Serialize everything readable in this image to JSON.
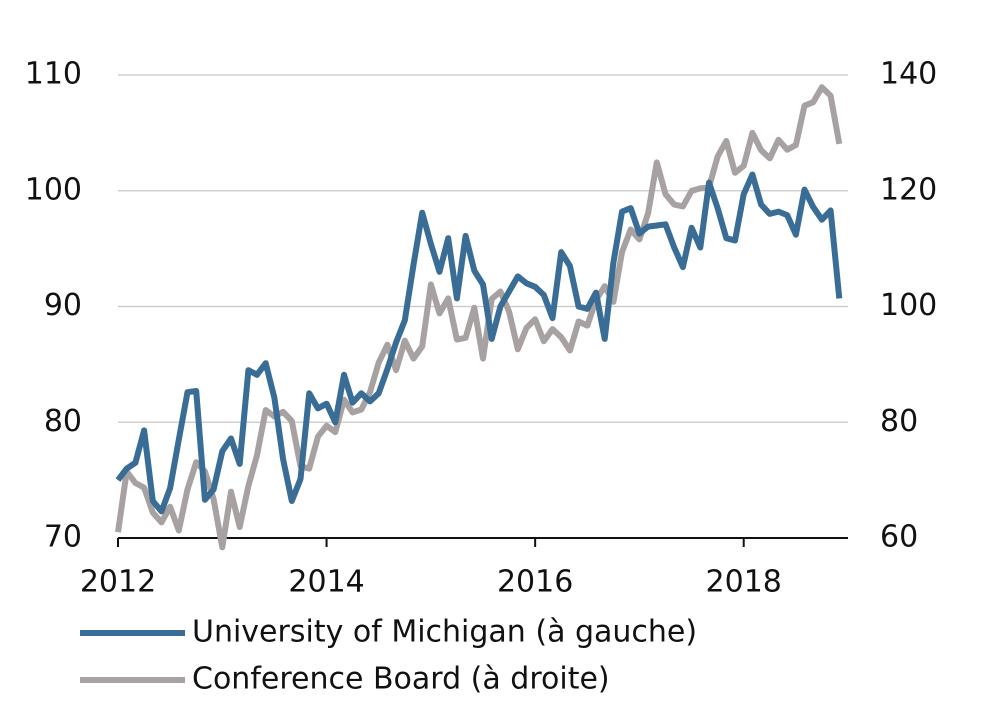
{
  "chart_data": {
    "type": "line",
    "x": [
      2012,
      2012.0833,
      2012.1667,
      2012.25,
      2012.3333,
      2012.4167,
      2012.5,
      2012.5833,
      2012.6667,
      2012.75,
      2012.8333,
      2012.9167,
      2013,
      2013.0833,
      2013.1667,
      2013.25,
      2013.3333,
      2013.4167,
      2013.5,
      2013.5833,
      2013.6667,
      2013.75,
      2013.8333,
      2013.9167,
      2014,
      2014.0833,
      2014.1667,
      2014.25,
      2014.3333,
      2014.4167,
      2014.5,
      2014.5833,
      2014.6667,
      2014.75,
      2014.8333,
      2014.9167,
      2015,
      2015.0833,
      2015.1667,
      2015.25,
      2015.3333,
      2015.4167,
      2015.5,
      2015.5833,
      2015.6667,
      2015.75,
      2015.8333,
      2015.9167,
      2016,
      2016.0833,
      2016.1667,
      2016.25,
      2016.3333,
      2016.4167,
      2016.5,
      2016.5833,
      2016.6667,
      2016.75,
      2016.8333,
      2016.9167,
      2017,
      2017.0833,
      2017.1667,
      2017.25,
      2017.3333,
      2017.4167,
      2017.5,
      2017.5833,
      2017.6667,
      2017.75,
      2017.8333,
      2017.9167,
      2018,
      2018.0833,
      2018.1667,
      2018.25,
      2018.3333,
      2018.4167,
      2018.5,
      2018.5833,
      2018.6667,
      2018.75,
      2018.8333,
      2018.9167
    ],
    "series": [
      {
        "name": "University of Michigan (à gauche)",
        "color": "#3a6d96",
        "values": [
          75,
          76,
          76.5,
          79.3,
          73.2,
          72.3,
          74.3,
          78.5,
          82.6,
          82.7,
          73.3,
          74.2,
          77.5,
          78.6,
          76.4,
          84.5,
          84.1,
          85.1,
          82.1,
          76.8,
          73.2,
          75.1,
          82.5,
          81.2,
          81.6,
          80.0,
          84.1,
          81.7,
          82.5,
          81.8,
          82.5,
          84.6,
          86.9,
          88.8,
          93.6,
          98.1,
          95.4,
          93.0,
          95.9,
          90.7,
          96.1,
          93.1,
          91.9,
          87.2,
          90.0,
          91.3,
          92.6,
          92.0,
          91.7,
          91.0,
          89.0,
          94.7,
          93.5,
          90.0,
          89.8,
          91.2,
          87.2,
          93.8,
          98.2,
          98.5,
          96.3,
          96.9,
          97.0,
          97.1,
          95.1,
          93.4,
          96.8,
          95.1,
          100.7,
          98.5,
          95.9,
          95.7,
          99.7,
          101.4,
          98.8,
          98.0,
          98.2,
          97.9,
          96.2,
          100.1,
          98.6,
          97.5,
          98.3,
          90.7
        ]
      },
      {
        "name": "Conference Board (à droite)",
        "color": "#a8a1a1",
        "axis": "y2",
        "values": [
          61,
          71.5,
          69.5,
          68.7,
          64.4,
          62.7,
          65.4,
          61.3,
          68.4,
          73.1,
          71.5,
          66.7,
          58.4,
          68.0,
          61.9,
          69.0,
          74.3,
          82.1,
          81.0,
          81.8,
          80.2,
          72.4,
          72.0,
          77.5,
          79.4,
          78.3,
          83.9,
          81.7,
          82.2,
          85.2,
          90.3,
          93.4,
          89.0,
          94.1,
          91.0,
          93.1,
          103.8,
          98.8,
          101.4,
          94.3,
          94.6,
          99.8,
          91.0,
          101.3,
          102.6,
          99.1,
          92.6,
          96.3,
          97.8,
          94.0,
          96.1,
          94.7,
          92.4,
          97.4,
          96.7,
          101.1,
          103.5,
          100.8,
          109.4,
          113.3,
          111.6,
          116.1,
          124.9,
          119.4,
          117.6,
          117.3,
          120.0,
          120.4,
          120.6,
          125.9,
          128.6,
          123.1,
          124.3,
          130.0,
          127.0,
          125.6,
          128.8,
          127.1,
          127.9,
          134.7,
          135.3,
          137.9,
          136.4,
          128.1
        ]
      }
    ],
    "xlim": [
      2012,
      2019
    ],
    "xticks": [
      2012,
      2014,
      2016,
      2018
    ],
    "ylim": [
      70,
      110
    ],
    "yticks": [
      70,
      80,
      90,
      100,
      110
    ],
    "y2lim": [
      60,
      140
    ],
    "y2ticks": [
      60,
      80,
      100,
      120,
      140
    ],
    "grid": true,
    "legend": "bottom"
  }
}
